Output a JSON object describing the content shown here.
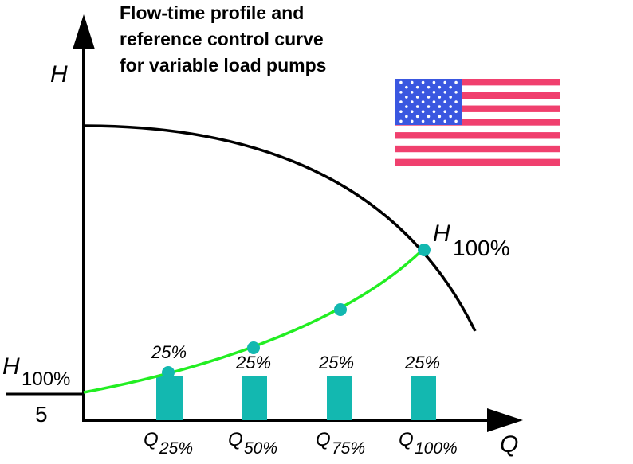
{
  "title_lines": [
    "Flow-time profile and",
    "reference control curve",
    "for variable load pumps"
  ],
  "y_axis_letter": "H",
  "x_axis_letter": "Q",
  "top_label": {
    "main": "H",
    "sub": "100%"
  },
  "left_label": {
    "main": "H",
    "sub": "100%",
    "below": "5"
  },
  "load_shares": [
    "25%",
    "25%",
    "25%",
    "25%"
  ],
  "q_labels": [
    {
      "main": "Q",
      "sub": "25%"
    },
    {
      "main": "Q",
      "sub": "50%"
    },
    {
      "main": "Q",
      "sub": "75%"
    },
    {
      "main": "Q",
      "sub": "100%"
    }
  ],
  "flag_icon": "us-flag-icon",
  "colors": {
    "pump_curve": "#000000",
    "control_curve": "#22ee22",
    "bars": "#13b8b0",
    "points": "#13b8b0",
    "flag_red": "#f0406e",
    "flag_blue": "#3a57e0",
    "flag_white": "#ffffff"
  }
}
